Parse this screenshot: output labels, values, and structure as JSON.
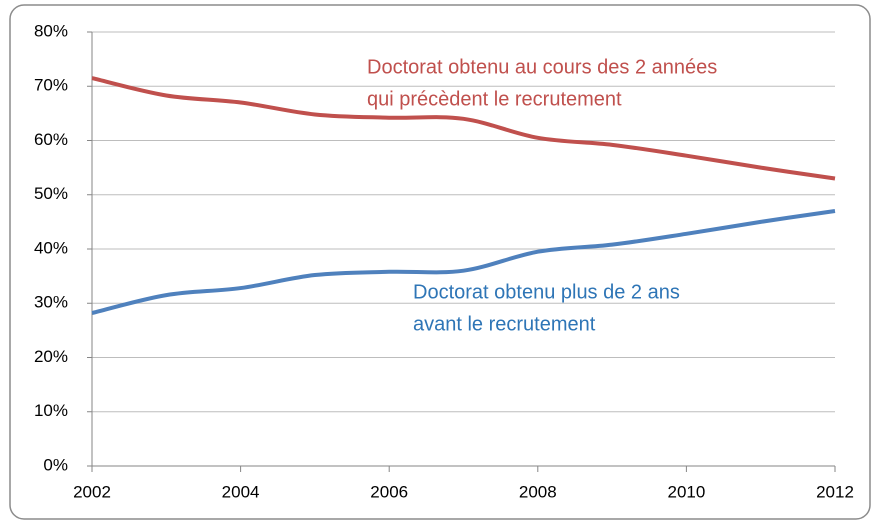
{
  "chart_data": {
    "type": "line",
    "x": [
      2002,
      2003,
      2004,
      2005,
      2006,
      2007,
      2008,
      2009,
      2010,
      2011,
      2012
    ],
    "series": [
      {
        "color": "#c0504d",
        "values": [
          71.5,
          68.3,
          67,
          64.8,
          64.2,
          64,
          60.5,
          59.2,
          57.2,
          55,
          53
        ]
      },
      {
        "color": "#4f81bd",
        "values": [
          28.2,
          31.5,
          32.8,
          35.2,
          35.8,
          36,
          39.5,
          40.8,
          42.8,
          45,
          47
        ]
      }
    ],
    "annotations": [
      {
        "lines": [
          "Doctorat obtenu au cours des 2 années",
          "qui précèdent le recrutement"
        ],
        "color": "#c0504d"
      },
      {
        "lines": [
          "Doctorat obtenu plus de 2 ans",
          "avant le recrutement"
        ],
        "color": "#2e75b6"
      }
    ],
    "xlim": [
      2002,
      2012
    ],
    "xticks": [
      2002,
      2004,
      2006,
      2008,
      2010,
      2012
    ],
    "ylim": [
      0,
      80
    ],
    "yticks": [
      {
        "value": 0,
        "label": "0%"
      },
      {
        "value": 10,
        "label": "10%"
      },
      {
        "value": 20,
        "label": "20%"
      },
      {
        "value": 30,
        "label": "30%"
      },
      {
        "value": 40,
        "label": "40%"
      },
      {
        "value": 50,
        "label": "50%"
      },
      {
        "value": 60,
        "label": "60%"
      },
      {
        "value": 70,
        "label": "70%"
      },
      {
        "value": 80,
        "label": "80%"
      }
    ],
    "grid": true
  }
}
